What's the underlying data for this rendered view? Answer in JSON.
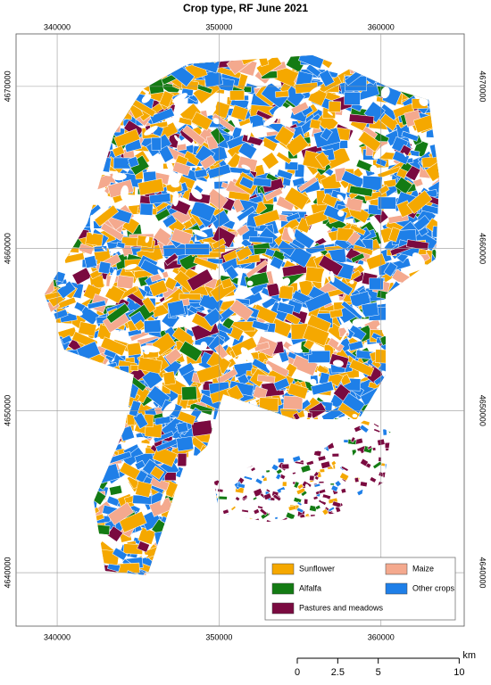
{
  "map": {
    "title": "Crop type, RF June 2021",
    "xlim": [
      337460,
      365140
    ],
    "ylim": [
      4636700,
      4673240
    ],
    "xticks": [
      340000,
      350000,
      360000
    ],
    "yticks": [
      4640000,
      4650000,
      4660000,
      4670000
    ],
    "grid": true,
    "legend": [
      {
        "name": "Sunflower",
        "color": "#f5a800"
      },
      {
        "name": "Maize",
        "color": "#f4a98e"
      },
      {
        "name": "Alfalfa",
        "color": "#137b13"
      },
      {
        "name": "Other crops",
        "color": "#1e7fe8"
      },
      {
        "name": "Pastures and meadows",
        "color": "#7a0a40"
      }
    ],
    "scale_bar": {
      "ticks": [
        0,
        2.5,
        5,
        10
      ],
      "unit": "km"
    }
  }
}
